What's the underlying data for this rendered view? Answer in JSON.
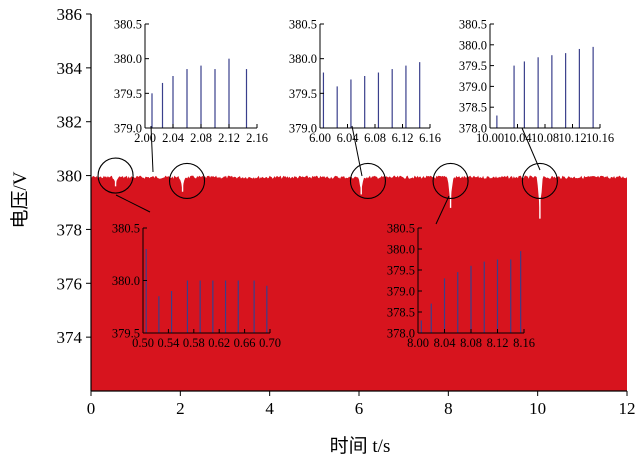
{
  "chart_data": {
    "type": "area",
    "title": "",
    "xlabel": "时间 t/s",
    "ylabel": "电压/V",
    "xlim": [
      0,
      12
    ],
    "ylim": [
      372,
      386
    ],
    "x_ticks": [
      "0",
      "2",
      "4",
      "6",
      "8",
      "10",
      "12"
    ],
    "y_ticks": [
      "374",
      "376",
      "378",
      "380",
      "382",
      "384",
      "386"
    ],
    "grid": false,
    "series": [
      {
        "color": "#d7141e",
        "baseline": 380,
        "dips": [
          {
            "x": 0.55,
            "y": 379.6
          },
          {
            "x": 2.05,
            "y": 379.4
          },
          {
            "x": 6.05,
            "y": 379.3
          },
          {
            "x": 8.05,
            "y": 378.8
          },
          {
            "x": 10.05,
            "y": 378.4
          }
        ]
      }
    ],
    "highlights": [
      {
        "x": 0.55,
        "y": 380
      },
      {
        "x": 2.15,
        "y": 379.8
      },
      {
        "x": 6.2,
        "y": 379.8
      },
      {
        "x": 8.05,
        "y": 379.8
      },
      {
        "x": 10.05,
        "y": 379.8
      }
    ],
    "insets": [
      {
        "xlim": [
          2.0,
          2.16
        ],
        "ylim": [
          379.0,
          380.5
        ],
        "x_ticks": [
          "2.00",
          "2.04",
          "2.08",
          "2.12",
          "2.16"
        ],
        "y_ticks": [
          "379.0",
          "379.5",
          "380.0",
          "380.5"
        ],
        "spikes": [
          {
            "x": 2.01,
            "y": 379.5
          },
          {
            "x": 2.025,
            "y": 379.65
          },
          {
            "x": 2.04,
            "y": 379.75
          },
          {
            "x": 2.06,
            "y": 379.85
          },
          {
            "x": 2.08,
            "y": 379.9
          },
          {
            "x": 2.1,
            "y": 379.85
          },
          {
            "x": 2.12,
            "y": 380.0
          },
          {
            "x": 2.145,
            "y": 379.85
          }
        ]
      },
      {
        "xlim": [
          6.0,
          6.16
        ],
        "ylim": [
          379.0,
          380.5
        ],
        "x_ticks": [
          "6.00",
          "6.04",
          "6.08",
          "6.12",
          "6.16"
        ],
        "y_ticks": [
          "379.0",
          "379.5",
          "380.0",
          "380.5"
        ],
        "spikes": [
          {
            "x": 6.005,
            "y": 379.8
          },
          {
            "x": 6.025,
            "y": 379.6
          },
          {
            "x": 6.045,
            "y": 379.7
          },
          {
            "x": 6.065,
            "y": 379.75
          },
          {
            "x": 6.085,
            "y": 379.8
          },
          {
            "x": 6.105,
            "y": 379.85
          },
          {
            "x": 6.125,
            "y": 379.9
          },
          {
            "x": 6.145,
            "y": 379.95
          }
        ]
      },
      {
        "xlim": [
          10.0,
          10.16
        ],
        "ylim": [
          378.0,
          380.5
        ],
        "x_ticks": [
          "10.00",
          "10.04",
          "10.08",
          "10.12",
          "10.16"
        ],
        "y_ticks": [
          "378.0",
          "378.5",
          "379.0",
          "379.5",
          "380.0",
          "380.5"
        ],
        "spikes": [
          {
            "x": 10.01,
            "y": 378.3
          },
          {
            "x": 10.035,
            "y": 379.5
          },
          {
            "x": 10.05,
            "y": 379.6
          },
          {
            "x": 10.07,
            "y": 379.7
          },
          {
            "x": 10.09,
            "y": 379.75
          },
          {
            "x": 10.11,
            "y": 379.8
          },
          {
            "x": 10.13,
            "y": 379.9
          },
          {
            "x": 10.15,
            "y": 379.95
          }
        ]
      },
      {
        "xlim": [
          0.5,
          0.7
        ],
        "ylim": [
          379.5,
          380.5
        ],
        "x_ticks": [
          "0.50",
          "0.54",
          "0.58",
          "0.62",
          "0.66",
          "0.70"
        ],
        "y_ticks": [
          "379.5",
          "380.0",
          "380.5"
        ],
        "spikes": [
          {
            "x": 0.505,
            "y": 380.3
          },
          {
            "x": 0.525,
            "y": 379.85
          },
          {
            "x": 0.545,
            "y": 379.9
          },
          {
            "x": 0.57,
            "y": 380.0
          },
          {
            "x": 0.59,
            "y": 380.0
          },
          {
            "x": 0.61,
            "y": 380.0
          },
          {
            "x": 0.63,
            "y": 380.0
          },
          {
            "x": 0.65,
            "y": 380.0
          },
          {
            "x": 0.675,
            "y": 380.0
          },
          {
            "x": 0.695,
            "y": 379.95
          }
        ]
      },
      {
        "xlim": [
          8.0,
          8.16
        ],
        "ylim": [
          378.0,
          380.5
        ],
        "x_ticks": [
          "8.00",
          "8.04",
          "8.08",
          "8.12",
          "8.16"
        ],
        "y_ticks": [
          "378.0",
          "378.5",
          "379.0",
          "379.5",
          "380.0",
          "380.5"
        ],
        "spikes": [
          {
            "x": 8.005,
            "y": 378.3
          },
          {
            "x": 8.02,
            "y": 378.7
          },
          {
            "x": 8.04,
            "y": 379.3
          },
          {
            "x": 8.06,
            "y": 379.45
          },
          {
            "x": 8.08,
            "y": 379.6
          },
          {
            "x": 8.1,
            "y": 379.7
          },
          {
            "x": 8.12,
            "y": 379.75
          },
          {
            "x": 8.14,
            "y": 379.75
          },
          {
            "x": 8.155,
            "y": 379.95
          }
        ]
      }
    ]
  }
}
